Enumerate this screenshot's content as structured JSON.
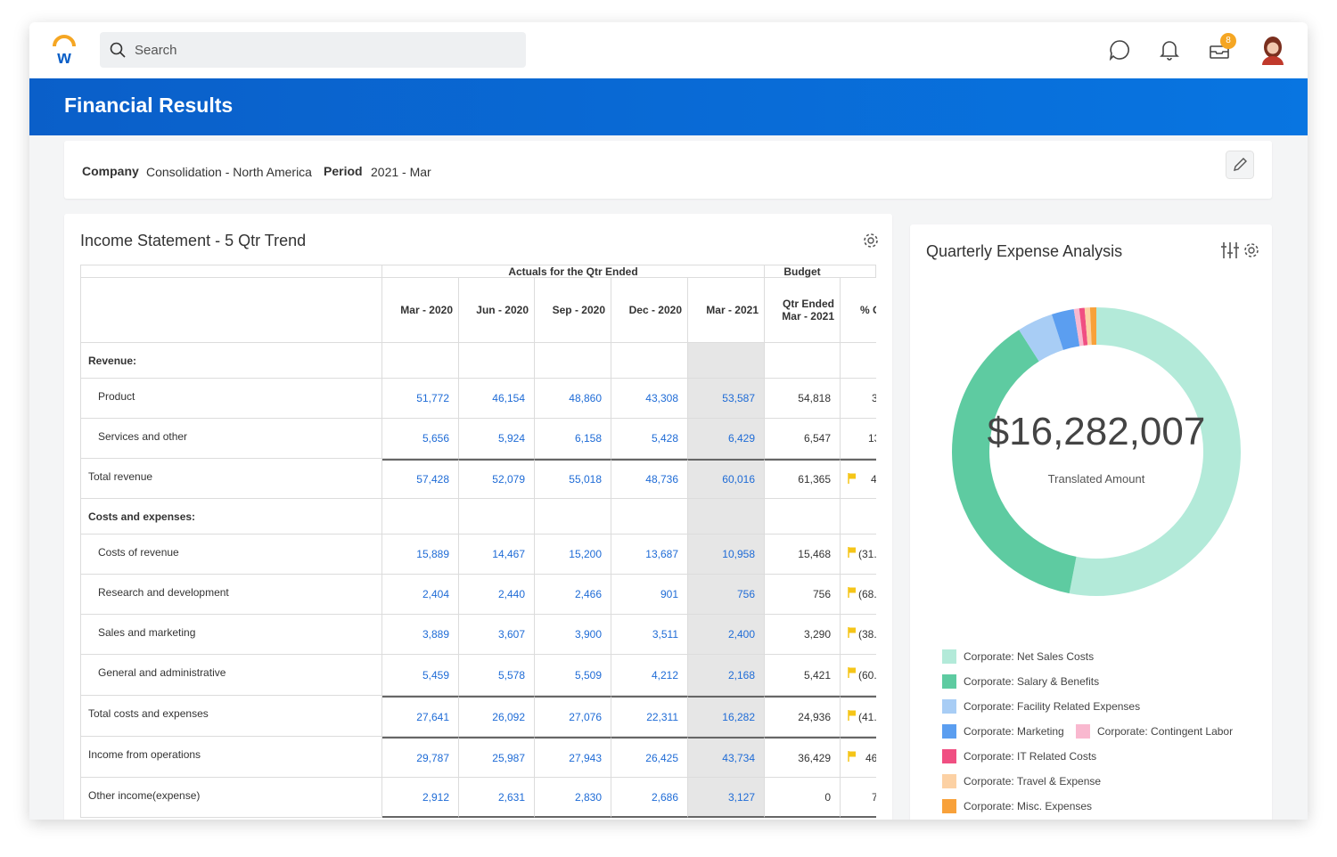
{
  "header": {
    "search_placeholder": "Search",
    "badge": "8"
  },
  "page_title": "Financial Results",
  "filters": [
    {
      "label": "Company",
      "value": "Consolidation - North America"
    },
    {
      "label": "Period",
      "value": "2021 - Mar"
    }
  ],
  "income_statement": {
    "title": "Income Statement - 5 Qtr Trend",
    "group_headers": [
      "Actuals for the Qtr Ended",
      "Budget"
    ],
    "columns": [
      "Mar - 2020",
      "Jun - 2020",
      "Sep - 2020",
      "Dec - 2020",
      "Mar - 2021",
      "Qtr Ended\nMar - 2021",
      "% C"
    ],
    "rows": [
      {
        "label": "Revenue:",
        "section": true
      },
      {
        "label": "Product",
        "indent": true,
        "values": [
          "51,772",
          "46,154",
          "48,860",
          "43,308",
          "53,587",
          "54,818"
        ],
        "change": "3"
      },
      {
        "label": "Services and other",
        "indent": true,
        "values": [
          "5,656",
          "5,924",
          "6,158",
          "5,428",
          "6,429",
          "6,547"
        ],
        "change": "13"
      },
      {
        "label": "Total revenue",
        "rule_above": true,
        "flag": true,
        "values": [
          "57,428",
          "52,079",
          "55,018",
          "48,736",
          "60,016",
          "61,365"
        ],
        "change": "4"
      },
      {
        "label": "Costs and expenses:",
        "section": true
      },
      {
        "label": "Costs of revenue",
        "indent": true,
        "flag": true,
        "values": [
          "15,889",
          "14,467",
          "15,200",
          "13,687",
          "10,958",
          "15,468"
        ],
        "change": "(31."
      },
      {
        "label": "Research and development",
        "indent": true,
        "flag": true,
        "values": [
          "2,404",
          "2,440",
          "2,466",
          "901",
          "756",
          "756"
        ],
        "change": "(68."
      },
      {
        "label": "Sales and marketing",
        "indent": true,
        "flag": true,
        "values": [
          "3,889",
          "3,607",
          "3,900",
          "3,511",
          "2,400",
          "3,290"
        ],
        "change": "(38."
      },
      {
        "label": "General and administrative",
        "indent": true,
        "flag": true,
        "values": [
          "5,459",
          "5,578",
          "5,509",
          "4,212",
          "2,168",
          "5,421"
        ],
        "change": "(60."
      },
      {
        "label": "Total costs and expenses",
        "rule_above": true,
        "flag": true,
        "values": [
          "27,641",
          "26,092",
          "27,076",
          "22,311",
          "16,282",
          "24,936"
        ],
        "change": "(41."
      },
      {
        "label": "Income from operations",
        "rule_above": true,
        "flag": true,
        "values": [
          "29,787",
          "25,987",
          "27,943",
          "26,425",
          "43,734",
          "36,429"
        ],
        "change": "46"
      },
      {
        "label": "Other income(expense)",
        "values": [
          "2,912",
          "2,631",
          "2,830",
          "2,686",
          "3,127",
          "0"
        ],
        "change": "7"
      }
    ]
  },
  "chart_data": {
    "type": "donut",
    "title": "Quarterly Expense Analysis",
    "center_value": "$16,282,007",
    "center_label": "Translated Amount",
    "categories": [
      "Corporate: Net Sales Costs",
      "Corporate: Salary & Benefits",
      "Corporate: Facility Related Expenses",
      "Corporate: Marketing",
      "Corporate: Contingent Labor",
      "Corporate: IT Related Costs",
      "Corporate: Travel & Expense",
      "Corporate: Misc. Expenses"
    ],
    "values": [
      53,
      38,
      4,
      2.5,
      0.6,
      0.6,
      0.6,
      0.7
    ],
    "colors": [
      "#b3ead9",
      "#5ecba1",
      "#a8cdf5",
      "#5b9ef0",
      "#f9b8cf",
      "#f04f82",
      "#fcd1a4",
      "#f8a13a"
    ]
  }
}
